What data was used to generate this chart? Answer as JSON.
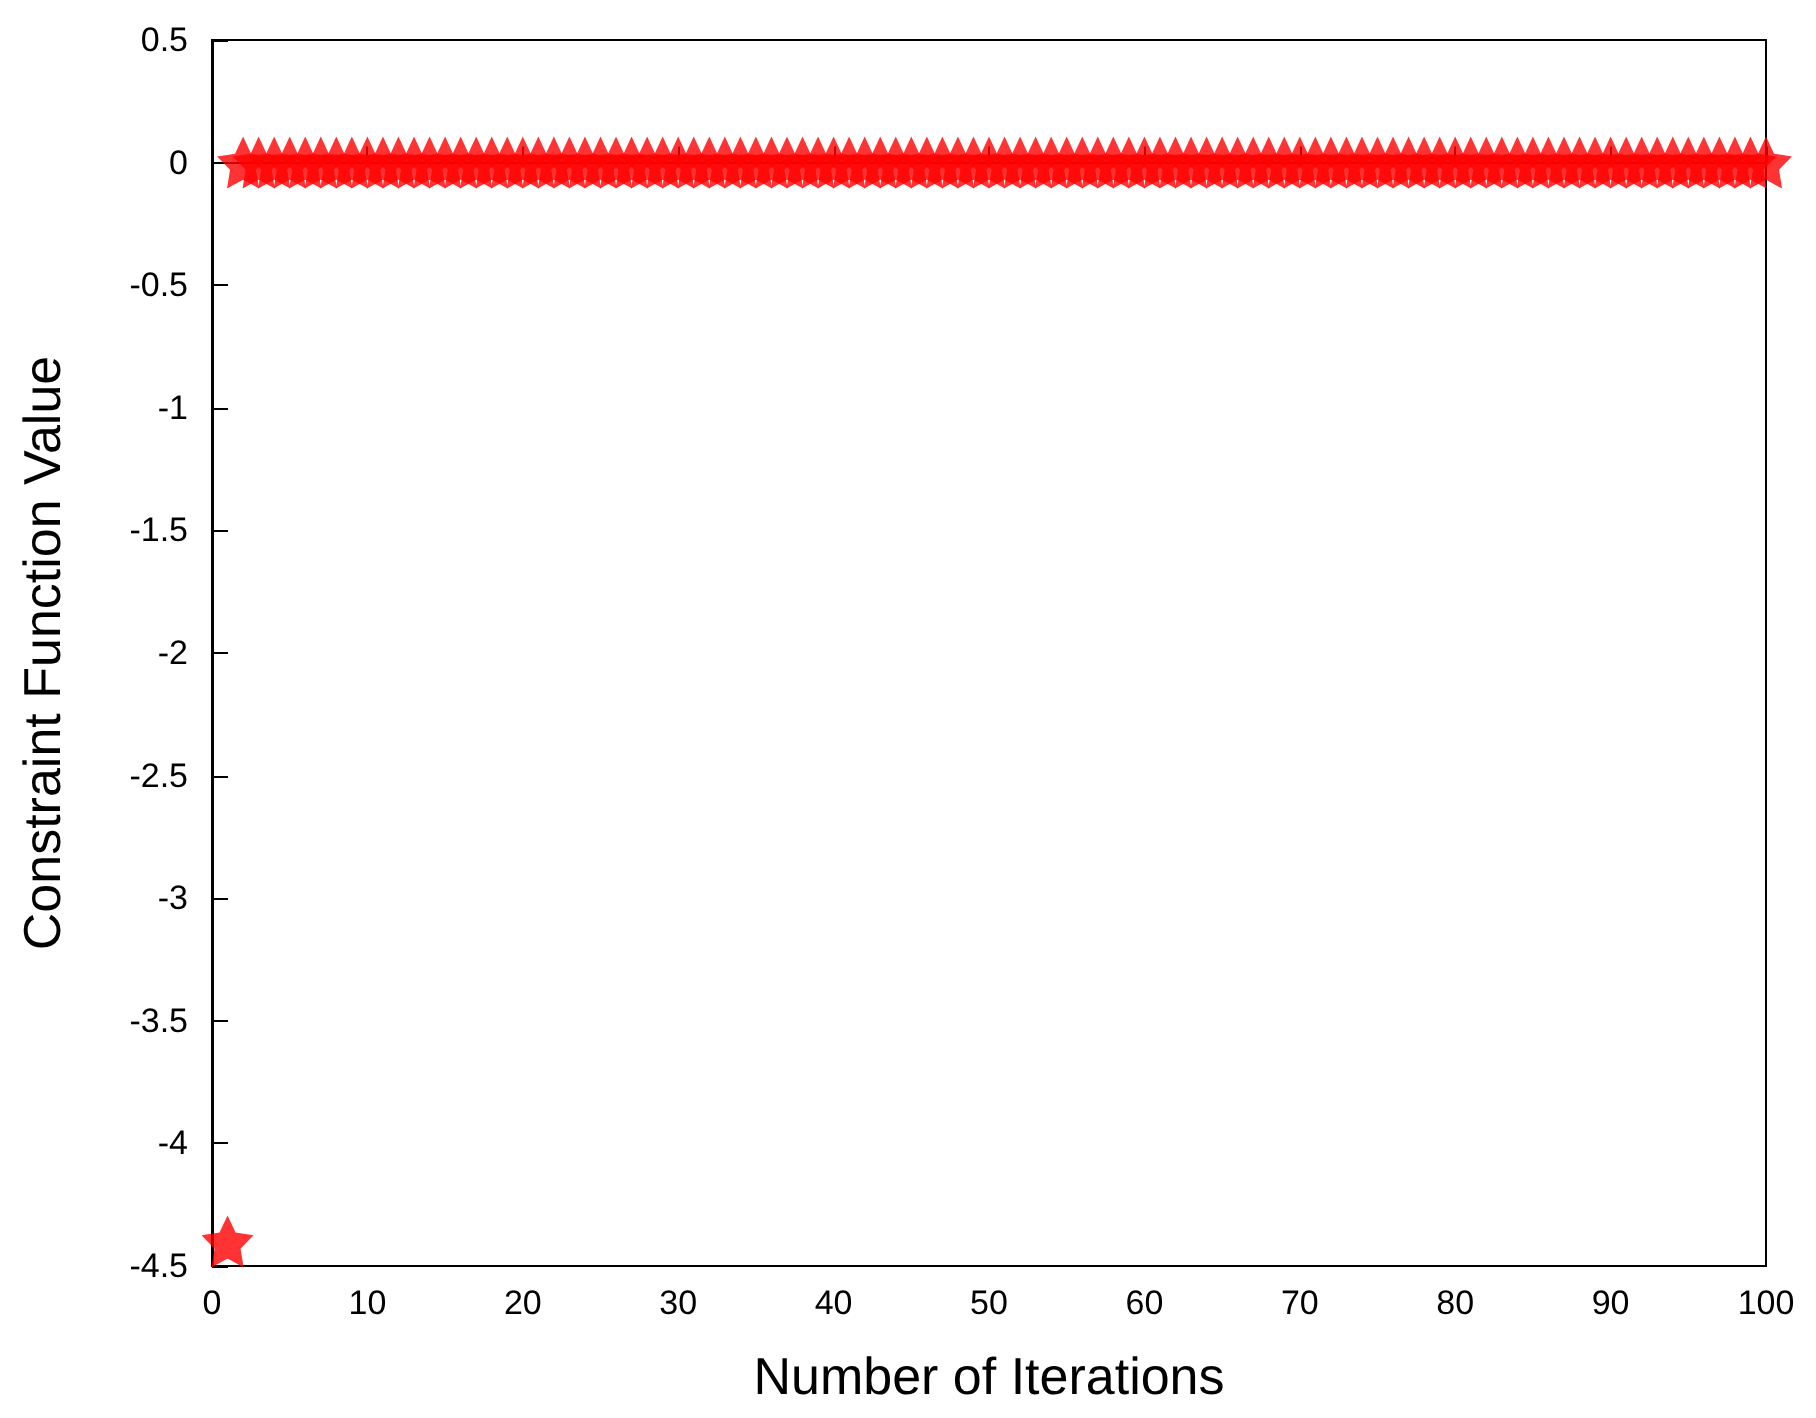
{
  "chart_data": {
    "type": "scatter",
    "xlabel": "Number of Iterations",
    "ylabel": "Constraint Function Value",
    "marker": "star",
    "series": [
      {
        "color": "#ff0000",
        "x": [
          1,
          2,
          3,
          4,
          5,
          6,
          7,
          8,
          9,
          10,
          11,
          12,
          13,
          14,
          15,
          16,
          17,
          18,
          19,
          20,
          21,
          22,
          23,
          24,
          25,
          26,
          27,
          28,
          29,
          30,
          31,
          32,
          33,
          34,
          35,
          36,
          37,
          38,
          39,
          40,
          41,
          42,
          43,
          44,
          45,
          46,
          47,
          48,
          49,
          50,
          51,
          52,
          53,
          54,
          55,
          56,
          57,
          58,
          59,
          60,
          61,
          62,
          63,
          64,
          65,
          66,
          67,
          68,
          69,
          70,
          71,
          72,
          73,
          74,
          75,
          76,
          77,
          78,
          79,
          80,
          81,
          82,
          83,
          84,
          85,
          86,
          87,
          88,
          89,
          90,
          91,
          92,
          93,
          94,
          95,
          96,
          97,
          98,
          99,
          100
        ],
        "values": [
          -4.4,
          0,
          0,
          0,
          0,
          0,
          0,
          0,
          0,
          0,
          0,
          0,
          0,
          0,
          0,
          0,
          0,
          0,
          0,
          0,
          0,
          0,
          0,
          0,
          0,
          0,
          0,
          0,
          0,
          0,
          0,
          0,
          0,
          0,
          0,
          0,
          0,
          0,
          0,
          0,
          0,
          0,
          0,
          0,
          0,
          0,
          0,
          0,
          0,
          0,
          0,
          0,
          0,
          0,
          0,
          0,
          0,
          0,
          0,
          0,
          0,
          0,
          0,
          0,
          0,
          0,
          0,
          0,
          0,
          0,
          0,
          0,
          0,
          0,
          0,
          0,
          0,
          0,
          0,
          0,
          0,
          0,
          0,
          0,
          0,
          0,
          0,
          0,
          0,
          0,
          0,
          0,
          0,
          0,
          0,
          0,
          0,
          0,
          0,
          0
        ]
      }
    ],
    "xlim": [
      0,
      100
    ],
    "xticks": [
      0,
      10,
      20,
      30,
      40,
      50,
      60,
      70,
      80,
      90,
      100
    ],
    "ylim": [
      -4.5,
      0.5
    ],
    "yticks": [
      0.5,
      0,
      -0.5,
      -1,
      -1.5,
      -2,
      -2.5,
      -3,
      -3.5,
      -4,
      -4.5
    ]
  }
}
